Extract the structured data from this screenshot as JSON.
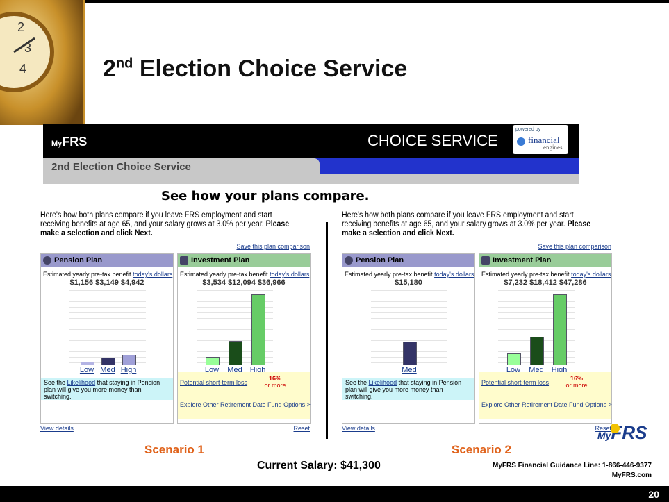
{
  "slide": {
    "title": {
      "number": "2",
      "ordinal": "nd",
      "text": "Election Choice Service"
    },
    "app": {
      "logo_my": "My",
      "logo_frs": "FRS",
      "banner": "CHOICE SERVICE",
      "powered_by": "powered by",
      "partner": "financial",
      "partner_sub": "engines",
      "tab": "2nd Election Choice Service",
      "heading": "See how your plans compare."
    },
    "scenarios": [
      {
        "label": "Scenario 1",
        "intro": "Here's how both plans compare if you leave FRS employment and start receiving benefits at age 65, and your salary grows at 3.0% per year.",
        "intro_bold": "Please make a selection and click Next.",
        "save_link": "Save this plan comparison",
        "pension": {
          "title": "Pension Plan",
          "estimate": "Estimated yearly pre-tax benefit",
          "dollars_link": "today's dollars",
          "categories": [
            "Low",
            "Med",
            "High"
          ],
          "values": [
            1156,
            3149,
            4942
          ],
          "value_labels": [
            "$1,156",
            "$3,149",
            "$4,942"
          ],
          "likelihood_pre": "See the",
          "likelihood_link": "Likelihood",
          "likelihood_post": "that staying in Pension plan will give you more money than switching."
        },
        "investment": {
          "title": "Investment Plan",
          "estimate": "Estimated yearly pre-tax benefit",
          "dollars_link": "today's dollars",
          "categories": [
            "Low",
            "Med",
            "High"
          ],
          "values": [
            3534,
            12094,
            36966
          ],
          "value_labels": [
            "$3,534",
            "$12,094",
            "$36,966"
          ],
          "loss_link": "Potential short-term loss",
          "loss_value": "16%",
          "loss_note": "or more",
          "explore": "Explore Other Retirement Date Fund Options >"
        },
        "view_details": "View details",
        "reset": "Reset"
      },
      {
        "label": "Scenario 2",
        "intro": "Here's how both plans compare if you leave FRS employment and start receiving benefits at age 65, and your salary grows at 3.0% per year.",
        "intro_bold": "Please make a selection and click Next.",
        "save_link": "Save this plan comparison",
        "pension": {
          "title": "Pension Plan",
          "estimate": "Estimated yearly pre-tax benefit",
          "dollars_link": "today's dollars",
          "categories": [
            "Med"
          ],
          "values": [
            15180
          ],
          "value_labels": [
            "$15,180"
          ],
          "likelihood_pre": "See the",
          "likelihood_link": "Likelihood",
          "likelihood_post": "that staying in Pension plan will give you more money than switching."
        },
        "investment": {
          "title": "Investment Plan",
          "estimate": "Estimated yearly pre-tax benefit",
          "dollars_link": "today's dollars",
          "categories": [
            "Low",
            "Med",
            "High"
          ],
          "values": [
            7232,
            18412,
            47286
          ],
          "value_labels": [
            "$7,232",
            "$18,412",
            "$47,286"
          ],
          "loss_link": "Potential short-term loss",
          "loss_value": "16%",
          "loss_note": "or more",
          "explore": "Explore Other Retirement Date Fund Options >"
        },
        "view_details": "View details",
        "reset": "Reset"
      }
    ],
    "footer": {
      "salary": "Current Salary: $41,300",
      "logo_my": "My",
      "logo_frs": "FRS",
      "guidance": "MyFRS Financial Guidance Line: 1-866-446-9377",
      "site": "MyFRS.com",
      "page": "20"
    }
  }
}
